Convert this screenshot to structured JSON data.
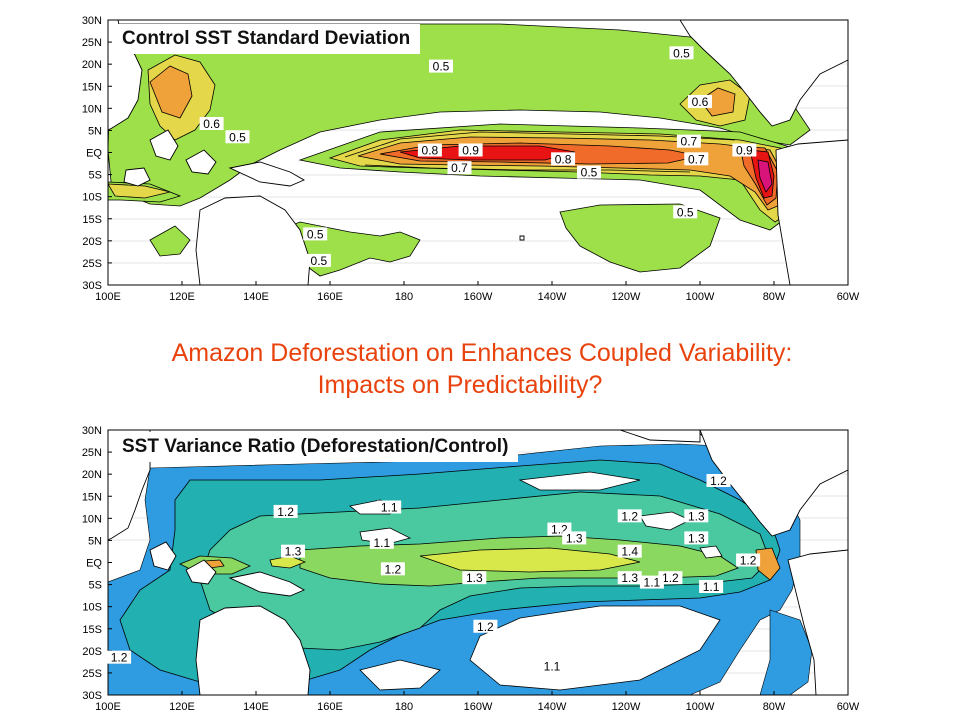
{
  "headline": {
    "line1": "Amazon Deforestation on Enhances Coupled Variability:",
    "line2": "Impacts on Predictability?"
  },
  "colors": {
    "headline": "#e8420d",
    "std_0_5": "#9ee04a",
    "std_0_6": "#e4d84a",
    "std_0_7": "#f0a23a",
    "std_0_8": "#f06a2a",
    "std_0_9": "#e81414",
    "std_1_0": "#d8147a",
    "ratio_1_0": "#2f9be0",
    "ratio_1_1": "#22b0b0",
    "ratio_1_2": "#4ac8a0",
    "ratio_1_3": "#8ad860",
    "ratio_1_4": "#d8e84a",
    "ratio_1_5": "#f0a23a"
  },
  "panels": [
    {
      "id": "top",
      "title": "Control SST Standard Deviation",
      "lat_labels": [
        "30N",
        "25N",
        "20N",
        "15N",
        "10N",
        "5N",
        "EQ",
        "5S",
        "10S",
        "15S",
        "20S",
        "25S",
        "30S"
      ],
      "lon_labels": [
        "100E",
        "120E",
        "140E",
        "160E",
        "180",
        "160W",
        "140W",
        "120W",
        "100W",
        "80W",
        "60W"
      ],
      "contour_labels": [
        {
          "text": "0.5",
          "lon": -170,
          "lat": 19
        },
        {
          "text": "0.5",
          "lon": -105,
          "lat": 22
        },
        {
          "text": "0.6",
          "lon": -100,
          "lat": 11
        },
        {
          "text": "0.6",
          "lon": 128,
          "lat": 6
        },
        {
          "text": "0.5",
          "lon": 135,
          "lat": 3
        },
        {
          "text": "0.8",
          "lon": -173,
          "lat": 0
        },
        {
          "text": "0.9",
          "lon": -162,
          "lat": 0
        },
        {
          "text": "0.7",
          "lon": -165,
          "lat": -4
        },
        {
          "text": "0.8",
          "lon": -137,
          "lat": -2
        },
        {
          "text": "0.5",
          "lon": -130,
          "lat": -5
        },
        {
          "text": "0.7",
          "lon": -103,
          "lat": 2
        },
        {
          "text": "0.7",
          "lon": -101,
          "lat": -2
        },
        {
          "text": "0.9",
          "lon": -88,
          "lat": 0
        },
        {
          "text": "0.5",
          "lon": -104,
          "lat": -14
        },
        {
          "text": "0.5",
          "lon": 156,
          "lat": -19
        },
        {
          "text": "0.5",
          "lon": 157,
          "lat": -25
        }
      ]
    },
    {
      "id": "bottom",
      "title": "SST Variance Ratio (Deforestation/Control)",
      "lat_labels": [
        "30N",
        "25N",
        "20N",
        "15N",
        "10N",
        "5N",
        "EQ",
        "5S",
        "10S",
        "15S",
        "20S",
        "25S",
        "30S"
      ],
      "lon_labels": [
        "100E",
        "120E",
        "140E",
        "160E",
        "180",
        "160W",
        "140W",
        "120W",
        "100W",
        "80W",
        "60W"
      ],
      "contour_labels": [
        {
          "text": "1.2",
          "lon": -95,
          "lat": 18
        },
        {
          "text": "1.1",
          "lon": 176,
          "lat": 12
        },
        {
          "text": "1.2",
          "lon": 148,
          "lat": 11
        },
        {
          "text": "1.3",
          "lon": -101,
          "lat": 10
        },
        {
          "text": "1.2",
          "lon": -119,
          "lat": 10
        },
        {
          "text": "1.2",
          "lon": -138,
          "lat": 7
        },
        {
          "text": "1.3",
          "lon": -134,
          "lat": 5
        },
        {
          "text": "1.3",
          "lon": -101,
          "lat": 5
        },
        {
          "text": "1.1",
          "lon": 174,
          "lat": 4
        },
        {
          "text": "1.3",
          "lon": 150,
          "lat": 2
        },
        {
          "text": "1.4",
          "lon": -119,
          "lat": 2
        },
        {
          "text": "1.2",
          "lon": -87,
          "lat": 0
        },
        {
          "text": "1.2",
          "lon": 177,
          "lat": -2
        },
        {
          "text": "1.3",
          "lon": -161,
          "lat": -4
        },
        {
          "text": "1.3",
          "lon": -119,
          "lat": -4
        },
        {
          "text": "1.2",
          "lon": -108,
          "lat": -4
        },
        {
          "text": "1.1",
          "lon": -113,
          "lat": -5
        },
        {
          "text": "1.1",
          "lon": -97,
          "lat": -6
        },
        {
          "text": "1.2",
          "lon": -158,
          "lat": -15
        },
        {
          "text": "1.1",
          "lon": -140,
          "lat": -24
        },
        {
          "text": "1.2",
          "lon": 103,
          "lat": -22
        }
      ]
    }
  ]
}
